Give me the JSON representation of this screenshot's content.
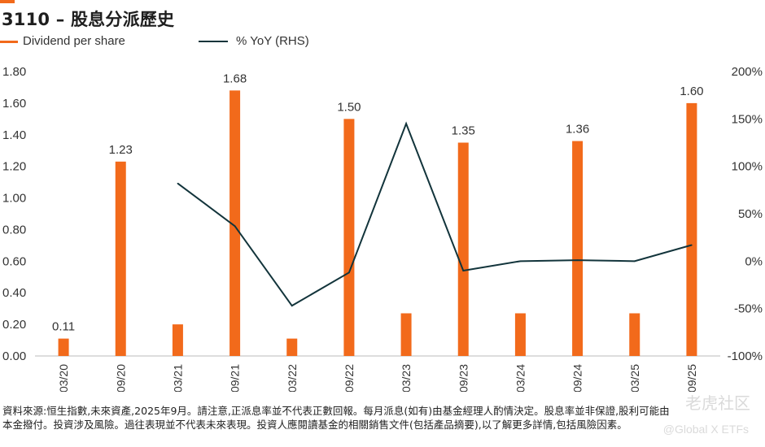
{
  "title": "3110 – 股息分派歷史",
  "legend": {
    "bar_label": "Dividend per share",
    "line_label": "% YoY (RHS)"
  },
  "colors": {
    "bar": "#f26a1b",
    "line": "#12343b",
    "accent": "#f26a1b"
  },
  "chart_data": {
    "type": "bar",
    "categories": [
      "03/20",
      "09/20",
      "03/21",
      "09/21",
      "03/22",
      "09/22",
      "03/23",
      "09/23",
      "03/24",
      "09/24",
      "03/25",
      "09/25"
    ],
    "series": [
      {
        "name": "Dividend per share",
        "type": "bar",
        "axis": "left",
        "values": [
          0.11,
          1.23,
          0.2,
          1.68,
          0.11,
          1.5,
          0.27,
          1.35,
          0.27,
          1.36,
          0.27,
          1.6
        ]
      },
      {
        "name": "% YoY (RHS)",
        "type": "line",
        "axis": "right",
        "values": [
          null,
          null,
          82,
          37,
          -47,
          -12,
          145,
          -10,
          0,
          1,
          0,
          17
        ]
      }
    ],
    "data_labels": [
      {
        "index": 0,
        "text": "0.11"
      },
      {
        "index": 1,
        "text": "1.23"
      },
      {
        "index": 3,
        "text": "1.68"
      },
      {
        "index": 5,
        "text": "1.50"
      },
      {
        "index": 7,
        "text": "1.35"
      },
      {
        "index": 9,
        "text": "1.36"
      },
      {
        "index": 11,
        "text": "1.60"
      }
    ],
    "left_axis": {
      "ylim": [
        0,
        1.8
      ],
      "ticks": [
        "0.00",
        "0.20",
        "0.40",
        "0.60",
        "0.80",
        "1.00",
        "1.20",
        "1.40",
        "1.60",
        "1.80"
      ]
    },
    "right_axis": {
      "ylim": [
        -100,
        200
      ],
      "ticks": [
        "-100%",
        "-50%",
        "0%",
        "50%",
        "100%",
        "150%",
        "200%"
      ]
    },
    "grid": false,
    "legend_position": "top-left"
  },
  "footnote": {
    "line1": "資料來源:恒生指數,未來資產,2025年9月。請注意,正派息率並不代表正數回報。每月派息(如有)由基金經理人酌情決定。股息率並非保證,股利可能由",
    "line2": "本金撥付。投資涉及風險。過往表現並不代表未來表現。投資人應閱讀基金的相關銷售文件(包括產品摘要),以了解更多詳情,包括風險因素。"
  },
  "watermark": {
    "text1": "老虎社区",
    "text2": "@Global X ETFs"
  }
}
